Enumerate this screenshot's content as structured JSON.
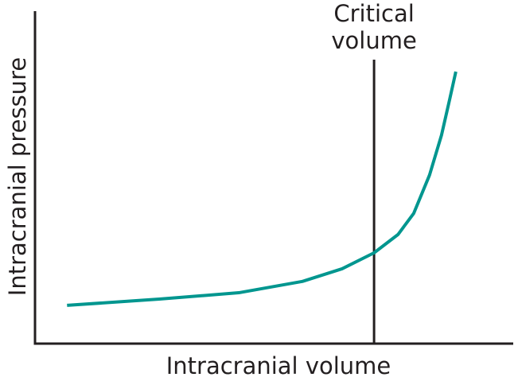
{
  "chart_data": {
    "type": "line",
    "x_label": "Intracranial volume",
    "y_label": "Intracranial pressure",
    "xlim": [
      0,
      100
    ],
    "ylim": [
      0,
      100
    ],
    "x": [
      6.7,
      26,
      42.6,
      55.9,
      64.2,
      70.9,
      75.9,
      79.2,
      82.5,
      85,
      86.7,
      88
    ],
    "series": [
      {
        "color": "#00968f",
        "values": [
          11.5,
          13.4,
          15.3,
          18.7,
          22.5,
          27.3,
          32.8,
          39.2,
          50.7,
          62.7,
          73.4,
          81.8
        ]
      }
    ],
    "annotation": {
      "x": 70.9,
      "top": 85.4,
      "lines": [
        "Critical",
        "volume"
      ],
      "color": "#231f20"
    }
  }
}
